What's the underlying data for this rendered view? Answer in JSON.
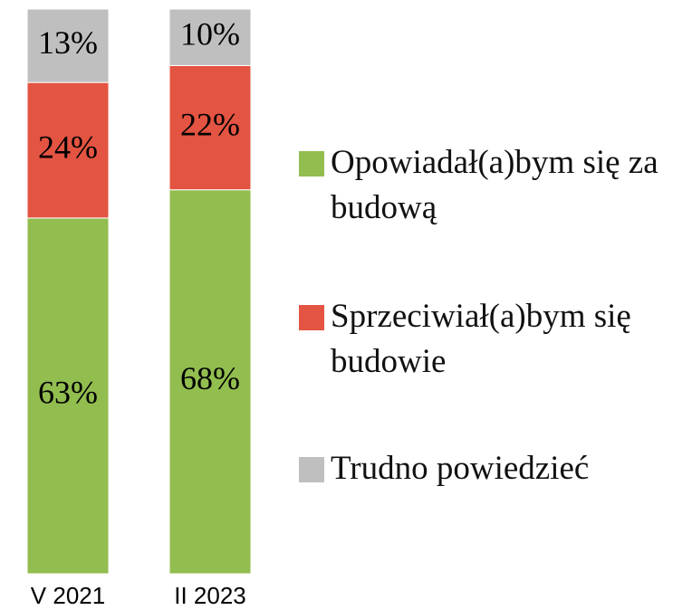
{
  "chart_data": {
    "type": "stacked_bar",
    "categories": [
      "V 2021",
      "II 2023"
    ],
    "series": [
      {
        "name": "Opowiadał(a)bym się za budową",
        "color": "#92bd4f",
        "values": [
          63,
          68
        ],
        "value_labels": [
          "63%",
          "68%"
        ]
      },
      {
        "name": "Sprzeciwiał(a)bym się budowie",
        "color": "#e45442",
        "values": [
          24,
          22
        ],
        "value_labels": [
          "24%",
          "22%"
        ]
      },
      {
        "name": "Trudno powiedzieć",
        "color": "#bfbfbf",
        "values": [
          13,
          10
        ],
        "value_labels": [
          "13%",
          "10%"
        ]
      }
    ],
    "ylim": [
      0,
      100
    ],
    "legend": "right"
  }
}
